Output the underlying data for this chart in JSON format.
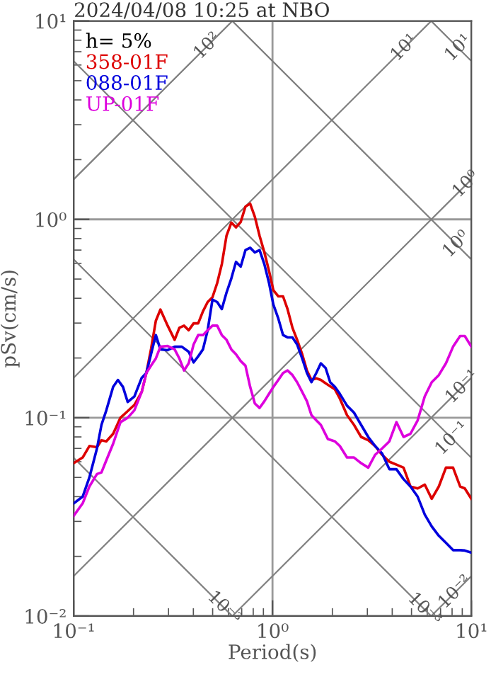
{
  "chart_data": {
    "type": "line",
    "title": "2024/04/08 10:25 at NBO",
    "xlabel": "Period(s)",
    "ylabel": "pSv(cm/s)",
    "legend_title": "h= 5%",
    "legend": "top left",
    "log": "xy",
    "grid": true,
    "xlim": [
      0.1,
      10
    ],
    "ylim": [
      0.01,
      10
    ],
    "xticks": [
      {
        "value": 0.1,
        "label": "10⁻¹"
      },
      {
        "value": 1,
        "label": "10⁰"
      },
      {
        "value": 10,
        "label": "10¹"
      }
    ],
    "yticks": [
      {
        "value": 0.01,
        "label": "10⁻²"
      },
      {
        "value": 0.1,
        "label": "10⁻¹"
      },
      {
        "value": 1,
        "label": "10⁰"
      },
      {
        "value": 10,
        "label": "10¹"
      }
    ],
    "series": [
      {
        "color": "#808080",
        "x": [
          0.1,
          0.628
        ],
        "values": [
          1.59,
          10
        ]
      },
      {
        "color": "#808080",
        "x": [
          0.1,
          6.28
        ],
        "values": [
          0.159,
          10
        ]
      },
      {
        "color": "#808080",
        "x": [
          0.1,
          10
        ],
        "values": [
          0.0159,
          1.59
        ]
      },
      {
        "color": "#808080",
        "x": [
          0.628,
          10
        ],
        "values": [
          0.01,
          0.159
        ]
      },
      {
        "color": "#808080",
        "x": [
          6.28,
          10
        ],
        "values": [
          0.01,
          0.0159
        ]
      },
      {
        "color": "#808080",
        "x": [
          6.28,
          10
        ],
        "values": [
          10,
          6.28
        ]
      },
      {
        "color": "#808080",
        "x": [
          0.628,
          10
        ],
        "values": [
          10,
          0.628
        ]
      },
      {
        "color": "#808080",
        "x": [
          0.1,
          10
        ],
        "values": [
          6.28,
          0.0628
        ]
      },
      {
        "color": "#808080",
        "x": [
          0.1,
          6.28
        ],
        "values": [
          0.628,
          0.01
        ]
      },
      {
        "color": "#808080",
        "x": [
          0.1,
          0.628
        ],
        "values": [
          0.0628,
          0.01
        ]
      },
      {
        "name": "358-01F",
        "color": "#dd0000",
        "x": [
          0.1,
          0.111,
          0.12,
          0.131,
          0.138,
          0.146,
          0.158,
          0.172,
          0.187,
          0.202,
          0.22,
          0.232,
          0.245,
          0.259,
          0.273,
          0.297,
          0.322,
          0.34,
          0.359,
          0.379,
          0.401,
          0.423,
          0.447,
          0.472,
          0.499,
          0.527,
          0.556,
          0.587,
          0.621,
          0.655,
          0.692,
          0.731,
          0.772,
          0.815,
          0.861,
          0.91,
          0.961,
          1.01,
          1.07,
          1.13,
          1.19,
          1.26,
          1.33,
          1.41,
          1.49,
          1.57,
          1.66,
          1.75,
          1.85,
          1.95,
          2.06,
          2.18,
          2.37,
          2.57,
          2.79,
          3.03,
          3.28,
          3.56,
          3.87,
          4.2,
          4.56,
          4.94,
          5.37,
          5.83,
          6.32,
          6.86,
          7.45,
          8.09,
          8.78,
          9.27,
          10
        ],
        "values": [
          0.059,
          0.063,
          0.072,
          0.071,
          0.077,
          0.076,
          0.083,
          0.1,
          0.108,
          0.116,
          0.135,
          0.168,
          0.222,
          0.308,
          0.351,
          0.291,
          0.247,
          0.284,
          0.291,
          0.276,
          0.299,
          0.299,
          0.344,
          0.383,
          0.405,
          0.477,
          0.594,
          0.826,
          0.963,
          0.911,
          0.97,
          1.16,
          1.2,
          1.03,
          0.826,
          0.682,
          0.548,
          0.439,
          0.409,
          0.409,
          0.353,
          0.284,
          0.247,
          0.209,
          0.173,
          0.155,
          0.158,
          0.155,
          0.149,
          0.144,
          0.139,
          0.125,
          0.103,
          0.092,
          0.08,
          0.077,
          0.072,
          0.065,
          0.06,
          0.058,
          0.056,
          0.045,
          0.044,
          0.046,
          0.039,
          0.045,
          0.056,
          0.056,
          0.045,
          0.044,
          0.039
        ]
      },
      {
        "name": "088-01F",
        "color": "#0000dd",
        "x": [
          0.1,
          0.111,
          0.12,
          0.131,
          0.138,
          0.146,
          0.158,
          0.167,
          0.177,
          0.187,
          0.202,
          0.22,
          0.232,
          0.245,
          0.259,
          0.273,
          0.297,
          0.322,
          0.35,
          0.379,
          0.401,
          0.423,
          0.447,
          0.472,
          0.499,
          0.527,
          0.556,
          0.587,
          0.621,
          0.655,
          0.692,
          0.731,
          0.772,
          0.815,
          0.861,
          0.91,
          0.961,
          1.01,
          1.07,
          1.13,
          1.19,
          1.26,
          1.33,
          1.41,
          1.49,
          1.57,
          1.66,
          1.75,
          1.85,
          1.95,
          2.06,
          2.18,
          2.37,
          2.57,
          2.79,
          3.03,
          3.28,
          3.56,
          3.87,
          4.2,
          4.56,
          4.94,
          5.37,
          5.83,
          6.32,
          6.86,
          7.45,
          8.09,
          8.78,
          9.27,
          10
        ],
        "values": [
          0.037,
          0.04,
          0.05,
          0.07,
          0.092,
          0.109,
          0.143,
          0.155,
          0.143,
          0.12,
          0.128,
          0.159,
          0.168,
          0.209,
          0.261,
          0.221,
          0.219,
          0.228,
          0.228,
          0.215,
          0.19,
          0.204,
          0.221,
          0.276,
          0.394,
          0.383,
          0.353,
          0.427,
          0.504,
          0.61,
          0.578,
          0.7,
          0.719,
          0.681,
          0.7,
          0.594,
          0.477,
          0.372,
          0.316,
          0.261,
          0.254,
          0.254,
          0.234,
          0.199,
          0.168,
          0.151,
          0.168,
          0.188,
          0.178,
          0.151,
          0.143,
          0.132,
          0.115,
          0.106,
          0.092,
          0.08,
          0.072,
          0.066,
          0.055,
          0.055,
          0.049,
          0.045,
          0.04,
          0.0325,
          0.0283,
          0.0254,
          0.0234,
          0.0215,
          0.0215,
          0.0214,
          0.0209
        ]
      },
      {
        "name": "UP-01F",
        "color": "#dd00dd",
        "x": [
          0.1,
          0.111,
          0.12,
          0.131,
          0.138,
          0.146,
          0.158,
          0.172,
          0.187,
          0.202,
          0.22,
          0.232,
          0.245,
          0.259,
          0.273,
          0.297,
          0.322,
          0.34,
          0.359,
          0.379,
          0.401,
          0.423,
          0.447,
          0.472,
          0.499,
          0.527,
          0.556,
          0.587,
          0.621,
          0.655,
          0.692,
          0.731,
          0.772,
          0.815,
          0.861,
          0.91,
          0.961,
          1.01,
          1.07,
          1.13,
          1.19,
          1.26,
          1.33,
          1.41,
          1.49,
          1.57,
          1.66,
          1.75,
          1.9,
          2.06,
          2.18,
          2.37,
          2.57,
          2.79,
          3.03,
          3.28,
          3.56,
          3.87,
          4.2,
          4.56,
          4.94,
          5.37,
          5.83,
          6.32,
          6.86,
          7.45,
          8.09,
          8.78,
          9.27,
          10
        ],
        "values": [
          0.032,
          0.037,
          0.045,
          0.052,
          0.053,
          0.061,
          0.074,
          0.095,
          0.1,
          0.109,
          0.135,
          0.168,
          0.183,
          0.199,
          0.228,
          0.23,
          0.221,
          0.199,
          0.173,
          0.188,
          0.234,
          0.261,
          0.261,
          0.276,
          0.291,
          0.291,
          0.261,
          0.247,
          0.221,
          0.209,
          0.193,
          0.183,
          0.143,
          0.118,
          0.112,
          0.121,
          0.132,
          0.143,
          0.155,
          0.168,
          0.173,
          0.164,
          0.151,
          0.135,
          0.121,
          0.103,
          0.097,
          0.092,
          0.078,
          0.076,
          0.072,
          0.063,
          0.063,
          0.059,
          0.056,
          0.065,
          0.07,
          0.076,
          0.095,
          0.08,
          0.083,
          0.097,
          0.128,
          0.151,
          0.164,
          0.188,
          0.228,
          0.258,
          0.258,
          0.228
        ]
      }
    ],
    "annotations": [
      {
        "text": "10²",
        "x": 0.47,
        "y": 7.48
      },
      {
        "text": "10¹",
        "x": 4.6,
        "y": 7.32
      },
      {
        "text": "10¹",
        "x": 8.6,
        "y": 7.31
      },
      {
        "text": "10⁰",
        "x": 9.4,
        "y": 1.5
      },
      {
        "text": "10⁰",
        "x": 8.4,
        "y": 0.748
      },
      {
        "text": "10⁻¹",
        "x": 9.0,
        "y": 0.143
      },
      {
        "text": "10⁻¹",
        "x": 8.0,
        "y": 0.0785
      },
      {
        "text": "10⁻³",
        "x": 0.57,
        "y": 0.011
      },
      {
        "text": "10⁻³",
        "x": 5.8,
        "y": 0.0108
      },
      {
        "text": "10⁻²",
        "x": 8.3,
        "y": 0.0132
      }
    ]
  }
}
